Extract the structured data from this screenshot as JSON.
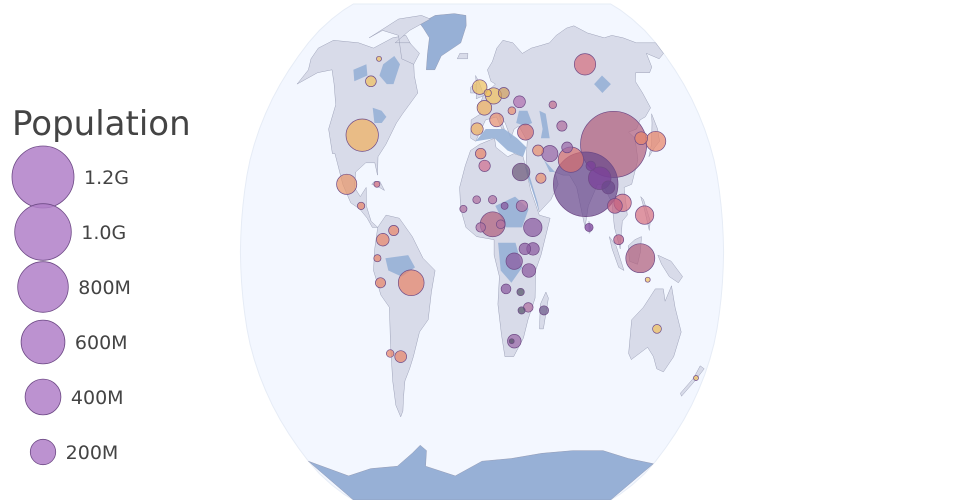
{
  "legend": {
    "title": "Population",
    "items": [
      {
        "label": "1.2G",
        "value": 1200000000
      },
      {
        "label": "1.0G",
        "value": 1000000000
      },
      {
        "label": "800M",
        "value": 800000000
      },
      {
        "label": "600M",
        "value": 600000000
      },
      {
        "label": "400M",
        "value": 400000000
      },
      {
        "label": "200M",
        "value": 200000000
      }
    ],
    "marker_color": "#b07fc8"
  },
  "colors": {
    "ocean": "#f3f7ff",
    "land": "#d8dbe9",
    "water_bodies": "#97b0d6",
    "coastline": "#8a8fa8",
    "bubble_outline": "#6e4a86"
  },
  "chart_data": {
    "type": "scatter",
    "projection": "robinson",
    "size_key": "population",
    "points": [
      {
        "lon": 104,
        "lat": 35,
        "population": 1370000000,
        "color": "#b0607d"
      },
      {
        "lon": 79,
        "lat": 22,
        "population": 1300000000,
        "color": "#6b4a8c"
      },
      {
        "lon": -100,
        "lat": 56,
        "population": 37000000,
        "color": "#f0c060"
      },
      {
        "lon": -103,
        "lat": 22,
        "population": 127000000,
        "color": "#e8956a"
      },
      {
        "lon": -53,
        "lat": -10,
        "population": 209000000,
        "color": "#e8856a"
      },
      {
        "lon": 118,
        "lat": -2,
        "population": 264000000,
        "color": "#b0607d"
      },
      {
        "lon": 8,
        "lat": 9,
        "population": 196000000,
        "color": "#b0607d"
      },
      {
        "lon": 69,
        "lat": 30,
        "population": 200000000,
        "color": "#d67070"
      },
      {
        "lon": 90,
        "lat": 24,
        "population": 160000000,
        "color": "#7a3f9a"
      },
      {
        "lon": 98,
        "lat": 62,
        "population": 144000000,
        "color": "#d67080"
      },
      {
        "lon": 138,
        "lat": 36,
        "population": 126000000,
        "color": "#e8856a"
      },
      {
        "lon": 38,
        "lat": 8,
        "population": 105000000,
        "color": "#8a5aa0"
      },
      {
        "lon": 30,
        "lat": 26,
        "population": 97000000,
        "color": "#6e5a7a"
      },
      {
        "lon": 122,
        "lat": 12,
        "population": 105000000,
        "color": "#d67080"
      },
      {
        "lon": 106,
        "lat": 16,
        "population": 95000000,
        "color": "#d67080"
      },
      {
        "lon": 10,
        "lat": 51,
        "population": 82000000,
        "color": "#f0c060"
      },
      {
        "lon": 35,
        "lat": 39,
        "population": 80000000,
        "color": "#d67070"
      },
      {
        "lon": 53,
        "lat": 32,
        "population": 81000000,
        "color": "#9a6aa8"
      },
      {
        "lon": 24,
        "lat": -3,
        "population": 84000000,
        "color": "#8a5aa0"
      },
      {
        "lon": 2,
        "lat": 47,
        "population": 67000000,
        "color": "#f0b060"
      },
      {
        "lon": -2,
        "lat": 54,
        "population": 66000000,
        "color": "#f0c060"
      },
      {
        "lon": 100,
        "lat": 15,
        "population": 69000000,
        "color": "#c06080"
      },
      {
        "lon": 12,
        "lat": 43,
        "population": 60000000,
        "color": "#e89070"
      },
      {
        "lon": 25,
        "lat": -29,
        "population": 57000000,
        "color": "#9a6aa8"
      },
      {
        "lon": 35,
        "lat": -6,
        "population": 57000000,
        "color": "#8a5aa0"
      },
      {
        "lon": -4,
        "lat": 40,
        "population": 46000000,
        "color": "#f0b060"
      },
      {
        "lon": -74,
        "lat": 4,
        "population": 49000000,
        "color": "#e8856a"
      },
      {
        "lon": 38,
        "lat": 1,
        "population": 50000000,
        "color": "#8a5aa0"
      },
      {
        "lon": -64,
        "lat": -34,
        "population": 44000000,
        "color": "#e8856a"
      },
      {
        "lon": 32,
        "lat": 49,
        "population": 44000000,
        "color": "#b070b0"
      },
      {
        "lon": 44,
        "lat": 33,
        "population": 38000000,
        "color": "#e89070"
      },
      {
        "lon": 45,
        "lat": 24,
        "population": 33000000,
        "color": "#e89070"
      },
      {
        "lon": 30,
        "lat": 15,
        "population": 40000000,
        "color": "#b070a0"
      },
      {
        "lon": 19,
        "lat": 52,
        "population": 38000000,
        "color": "#d0a060"
      },
      {
        "lon": -1,
        "lat": 32,
        "population": 35000000,
        "color": "#e8856a"
      },
      {
        "lon": 65,
        "lat": 41,
        "population": 32000000,
        "color": "#b070a0"
      },
      {
        "lon": 2,
        "lat": 28,
        "population": 41000000,
        "color": "#d07090"
      },
      {
        "lon": 32,
        "lat": 1,
        "population": 42000000,
        "color": "#8a5aa0"
      },
      {
        "lon": 102,
        "lat": 4,
        "population": 31000000,
        "color": "#c06080"
      },
      {
        "lon": -76,
        "lat": -10,
        "population": 32000000,
        "color": "#e8856a"
      },
      {
        "lon": -66,
        "lat": 7,
        "population": 32000000,
        "color": "#e8856a"
      },
      {
        "lon": 84,
        "lat": 28,
        "population": 29000000,
        "color": "#7a3f9a"
      },
      {
        "lon": -1,
        "lat": 8,
        "population": 29000000,
        "color": "#b070a0"
      },
      {
        "lon": 35,
        "lat": -18,
        "population": 29000000,
        "color": "#b070a0"
      },
      {
        "lon": 47,
        "lat": -19,
        "population": 26000000,
        "color": "#6e5a8a"
      },
      {
        "lon": 18,
        "lat": -12,
        "population": 30000000,
        "color": "#8a5aa0"
      },
      {
        "lon": 29,
        "lat": -13,
        "population": 17000000,
        "color": "#555568"
      },
      {
        "lon": 30,
        "lat": -19,
        "population": 16000000,
        "color": "#555568"
      },
      {
        "lon": 127,
        "lat": 37,
        "population": 51000000,
        "color": "#e8856a"
      },
      {
        "lon": 80,
        "lat": 8,
        "population": 21000000,
        "color": "#7a3f9a"
      },
      {
        "lon": 134,
        "lat": -25,
        "population": 24000000,
        "color": "#f0c060"
      },
      {
        "lon": 124,
        "lat": -9,
        "population": 1300000,
        "color": "#f0c060"
      },
      {
        "lon": -72,
        "lat": -33,
        "population": 18000000,
        "color": "#e8856a"
      },
      {
        "lon": -78,
        "lat": -2,
        "population": 16000000,
        "color": "#e8856a"
      },
      {
        "lon": -91,
        "lat": 15,
        "population": 17000000,
        "color": "#e8856a"
      },
      {
        "lon": -80,
        "lat": 22,
        "population": 11000000,
        "color": "#d67080"
      },
      {
        "lon": 174,
        "lat": -41,
        "population": 4800000,
        "color": "#f0c060"
      },
      {
        "lon": -100,
        "lat": 64,
        "population": 1000000,
        "color": "#f0c060"
      },
      {
        "lon": 60,
        "lat": 48,
        "population": 18000000,
        "color": "#c07090"
      },
      {
        "lon": 14,
        "lat": 9,
        "population": 24000000,
        "color": "#b070a0"
      },
      {
        "lon": 17,
        "lat": 15,
        "population": 15000000,
        "color": "#8a5aa0"
      },
      {
        "lon": 8,
        "lat": 17,
        "population": 22000000,
        "color": "#b070a0"
      },
      {
        "lon": -4,
        "lat": 17,
        "population": 19000000,
        "color": "#b070a0"
      },
      {
        "lon": -14,
        "lat": 14,
        "population": 16000000,
        "color": "#b070a0"
      },
      {
        "lon": 23,
        "lat": -29,
        "population": 2300000,
        "color": "#555568"
      },
      {
        "lon": 5,
        "lat": 52,
        "population": 17000000,
        "color": "#f0c060"
      },
      {
        "lon": 25,
        "lat": 46,
        "population": 19000000,
        "color": "#e89070"
      },
      {
        "lon": 67,
        "lat": 34,
        "population": 36000000,
        "color": "#9a6aa8"
      },
      {
        "lon": 96,
        "lat": 21,
        "population": 53000000,
        "color": "#6b4a8c"
      },
      {
        "lon": -96,
        "lat": 38,
        "population": 327000000,
        "color": "#f0b060"
      }
    ]
  }
}
